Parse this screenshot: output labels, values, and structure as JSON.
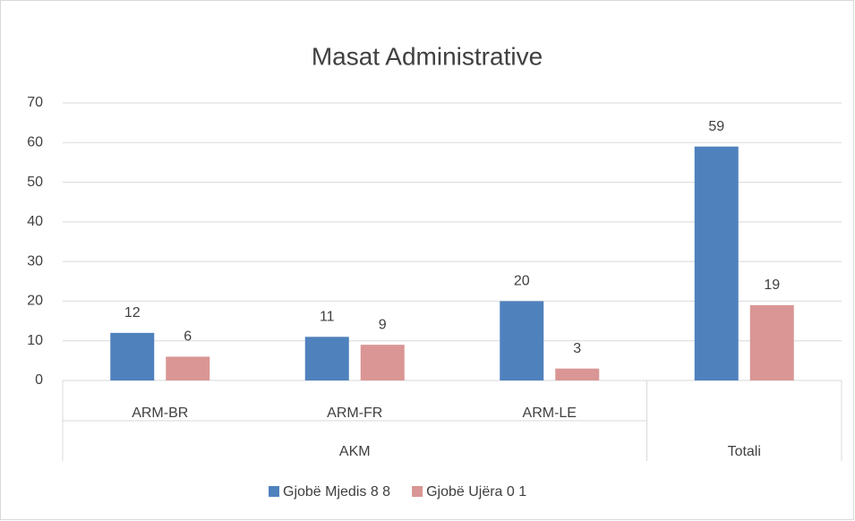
{
  "chart_data": {
    "type": "bar",
    "title": "Masat Administrative",
    "groups": [
      {
        "name": "AKM",
        "categories": [
          "ARM-BR",
          "ARM-FR",
          "ARM-LE"
        ]
      },
      {
        "name": "Totali",
        "categories": [
          null
        ]
      }
    ],
    "series": [
      {
        "name": "Gjobë Mjedis 8 8",
        "color": "#4f81bd",
        "values": [
          12,
          11,
          20,
          59
        ]
      },
      {
        "name": "Gjobë Ujëra 0 1",
        "color": "#d99694",
        "values": [
          6,
          9,
          3,
          19
        ]
      }
    ],
    "ylim": [
      0,
      70
    ],
    "yticks": [
      0,
      10,
      20,
      30,
      40,
      50,
      60,
      70
    ],
    "grid": true,
    "legend": "bottom"
  }
}
